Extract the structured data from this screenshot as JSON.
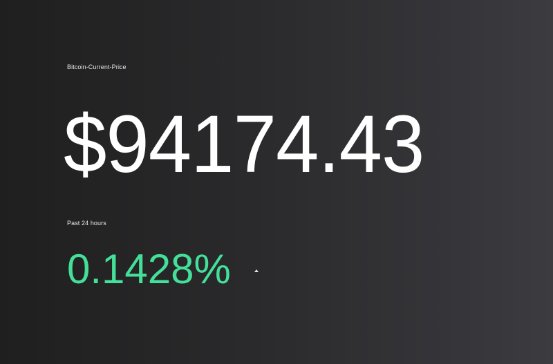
{
  "ticker": {
    "title": "Bitcoin-Current-Price",
    "price": "$94174.43",
    "period_label": "Past 24 hours",
    "change_percent": "0.1428%",
    "trend_icon": "caret-up-icon",
    "colors": {
      "price": "#ffffff",
      "change_positive": "#44e09a",
      "label": "#e8e8e8"
    }
  }
}
